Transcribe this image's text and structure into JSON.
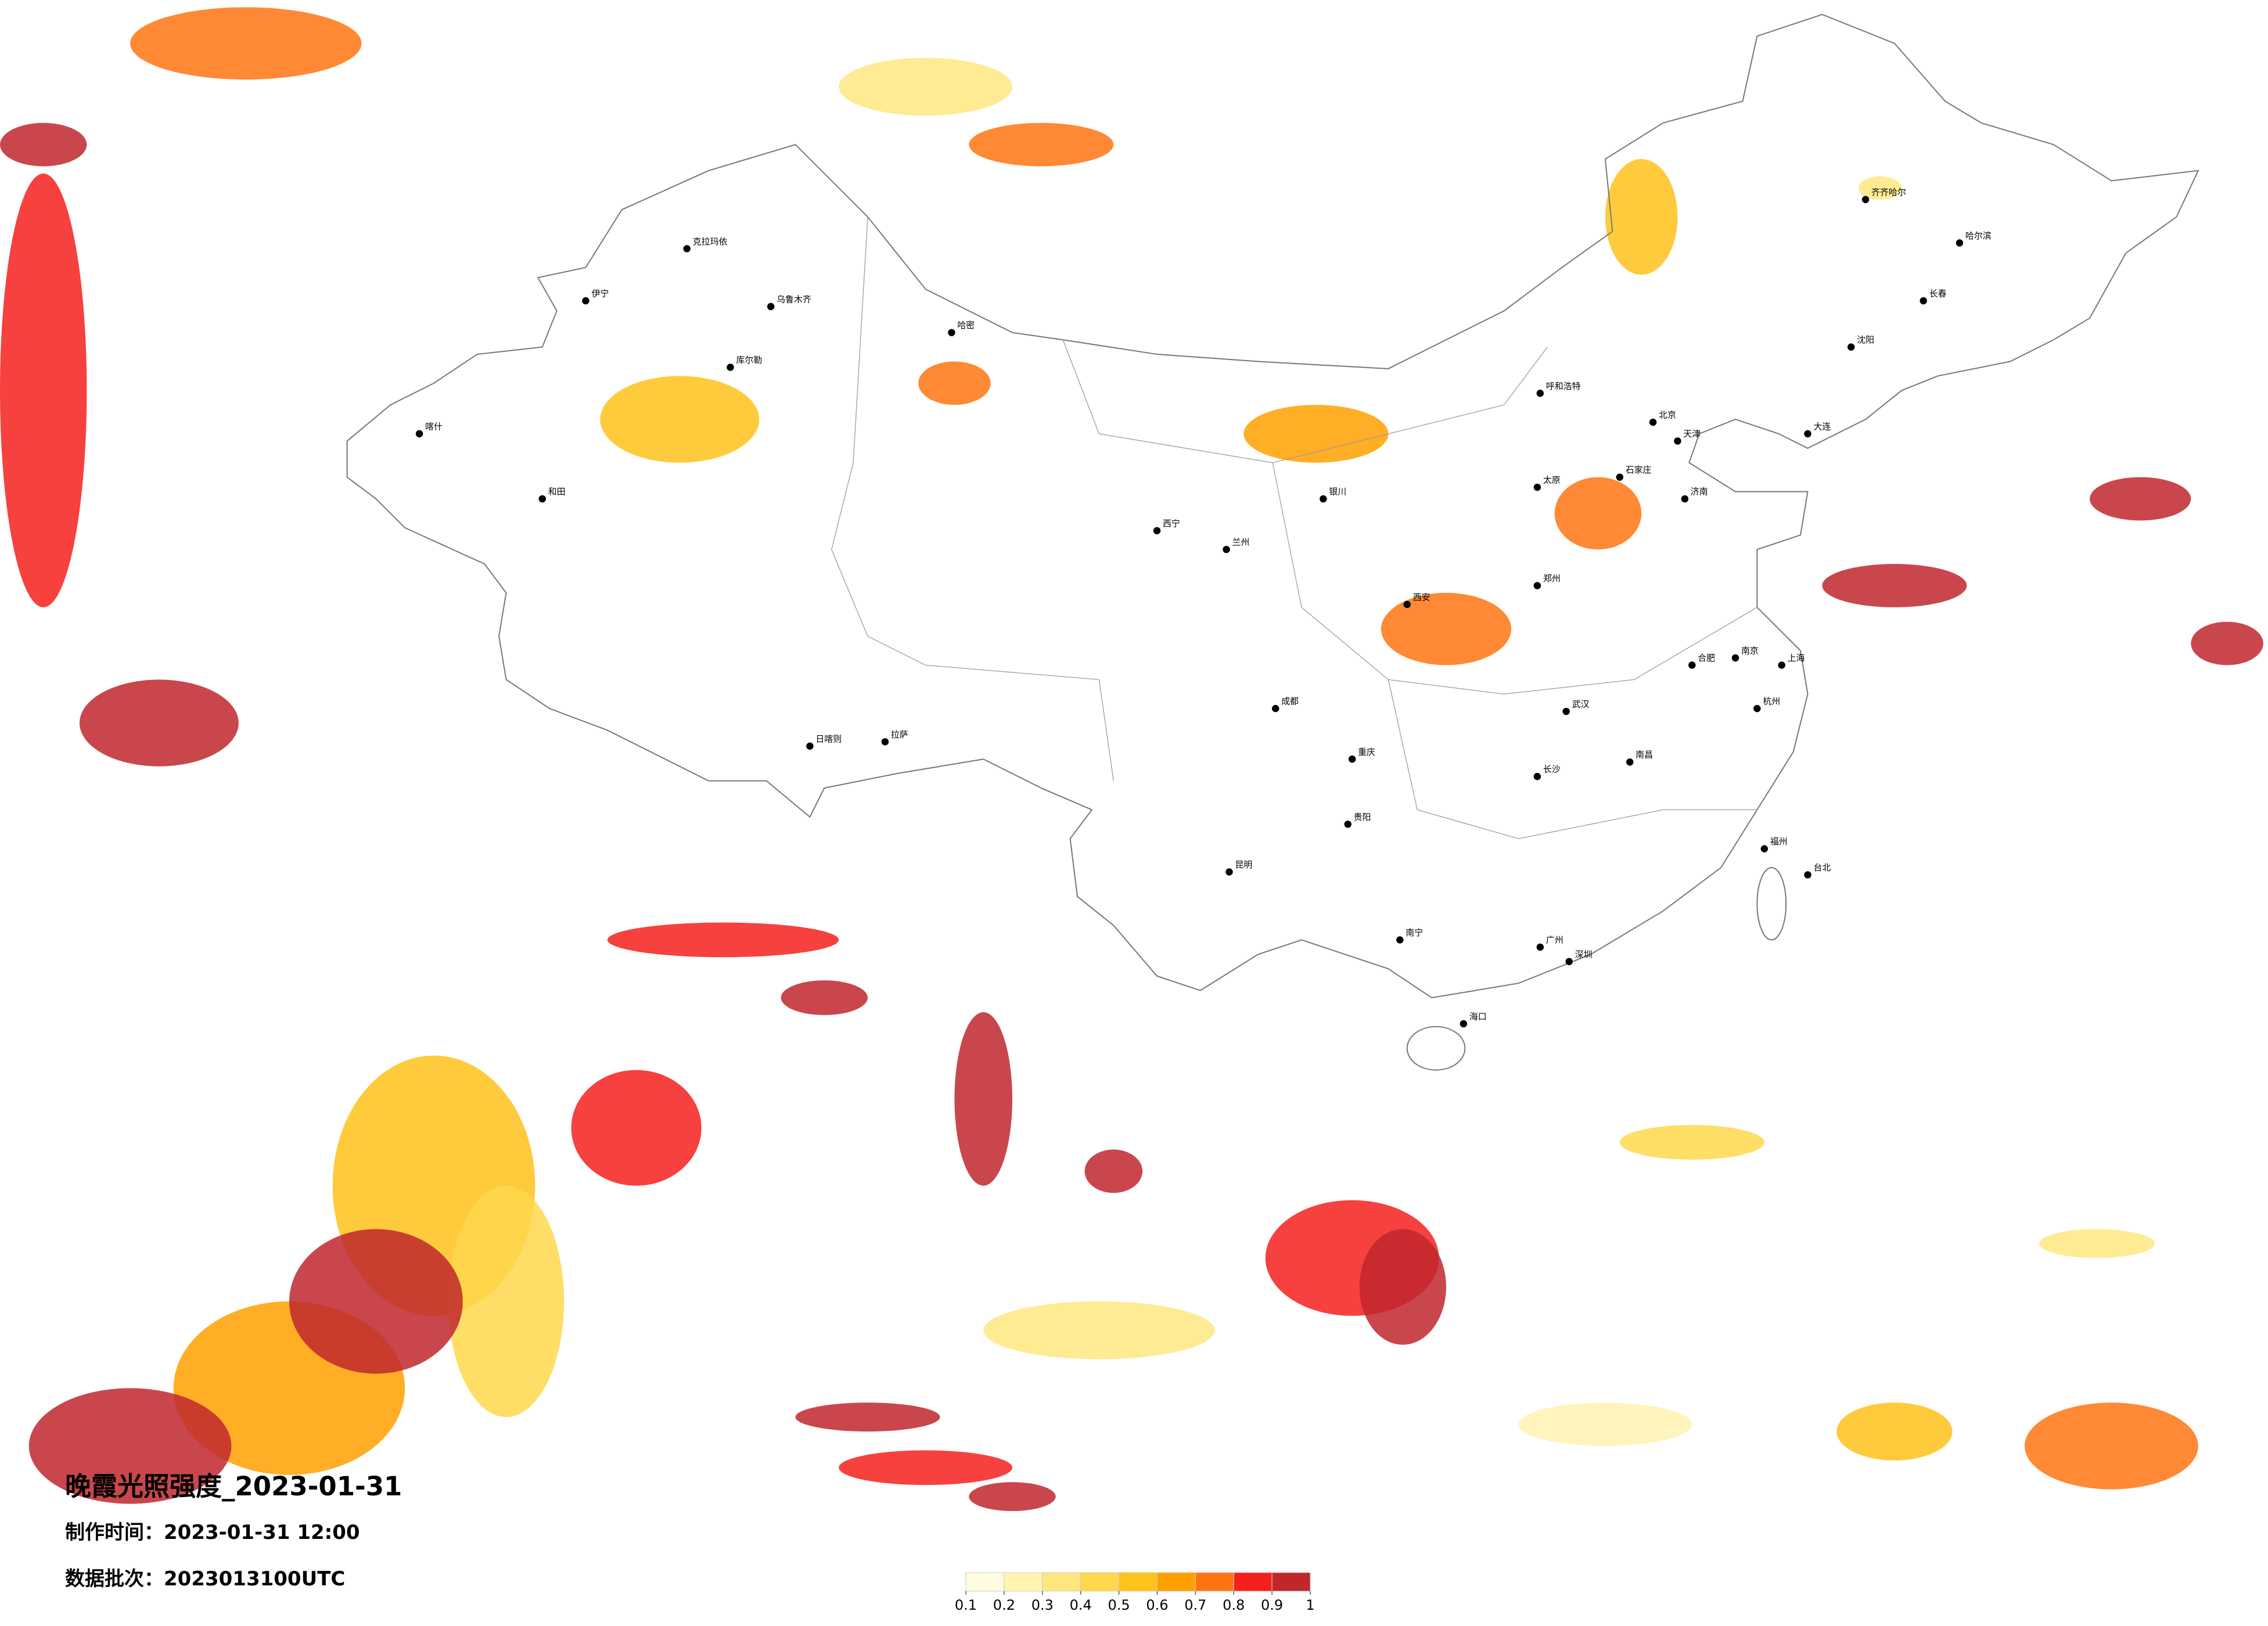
{
  "title": "晚霞光照强度_2023-01-31",
  "production_time": "制作时间：2023-01-31 12:00",
  "data_batch": "数据批次：2023013100UTC",
  "legend": {
    "ticks": [
      0.1,
      0.2,
      0.3,
      0.4,
      0.5,
      0.6,
      0.7,
      0.8,
      0.9,
      1
    ],
    "colors": [
      "#fffbe0",
      "#fff3b0",
      "#ffe780",
      "#ffd84c",
      "#ffc21a",
      "#ffa000",
      "#ff7410",
      "#f5201c",
      "#c0272d"
    ]
  },
  "cities": [
    "北京",
    "天津",
    "上海",
    "广州",
    "深圳",
    "重庆",
    "成都",
    "武汉",
    "西安",
    "兰州",
    "乌鲁木齐",
    "拉萨",
    "哈尔滨",
    "长春",
    "沈阳",
    "呼和浩特",
    "太原",
    "石家庄",
    "郑州",
    "济南",
    "南京",
    "杭州",
    "合肥",
    "南昌",
    "长沙",
    "福州",
    "贵阳",
    "昆明",
    "南宁",
    "海口",
    "西宁",
    "银川",
    "喀什",
    "和田",
    "伊宁",
    "克拉玛依",
    "哈密",
    "库尔勒",
    "日喀则",
    "齐齐哈尔",
    "台北",
    "大连"
  ]
}
